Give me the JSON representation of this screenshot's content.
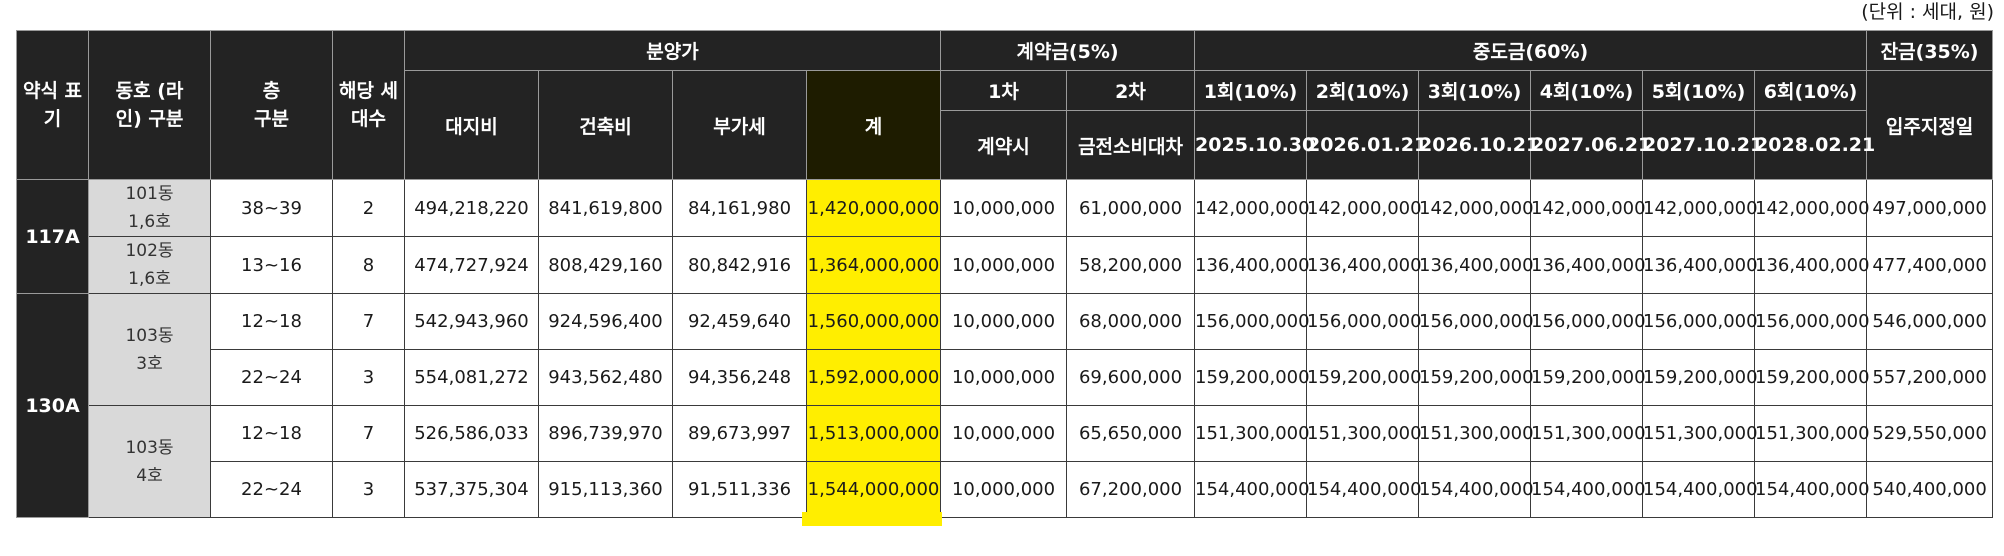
{
  "unit_note": "(단위 : 세대, 원)",
  "header": {
    "abbr": "약식 표기",
    "dong": "동호 (라인) 구분",
    "floor": "층 구분",
    "households": "해당 세대수",
    "sale_price": "분양가",
    "land": "대지비",
    "building": "건축비",
    "vat": "부가세",
    "total": "계",
    "deposit": "계약금(5%)",
    "deposit_1": "1차",
    "deposit_2": "2차",
    "deposit_1_when": "계약시",
    "deposit_2_when": "금전소비대차",
    "middle": "중도금(60%)",
    "middle_rounds": [
      "1회(10%)",
      "2회(10%)",
      "3회(10%)",
      "4회(10%)",
      "5회(10%)",
      "6회(10%)"
    ],
    "middle_dates": [
      "2025.10.30",
      "2026.01.21",
      "2026.10.21",
      "2027.06.21",
      "2027.10.21",
      "2028.02.21"
    ],
    "balance": "잔금(35%)",
    "balance_when": "입주지정일"
  },
  "types": [
    "117A",
    "130A"
  ],
  "dongs": [
    "101동 1,6호",
    "102동 1,6호",
    "103동 3호",
    "103동 4호"
  ],
  "rows": [
    {
      "floor": "38~39",
      "households": "2",
      "land": "494,218,220",
      "building": "841,619,800",
      "vat": "84,161,980",
      "total": "1,420,000,000",
      "dep1": "10,000,000",
      "dep2": "61,000,000",
      "mid": [
        "142,000,000",
        "142,000,000",
        "142,000,000",
        "142,000,000",
        "142,000,000",
        "142,000,000"
      ],
      "balance": "497,000,000"
    },
    {
      "floor": "13~16",
      "households": "8",
      "land": "474,727,924",
      "building": "808,429,160",
      "vat": "80,842,916",
      "total": "1,364,000,000",
      "dep1": "10,000,000",
      "dep2": "58,200,000",
      "mid": [
        "136,400,000",
        "136,400,000",
        "136,400,000",
        "136,400,000",
        "136,400,000",
        "136,400,000"
      ],
      "balance": "477,400,000"
    },
    {
      "floor": "12~18",
      "households": "7",
      "land": "542,943,960",
      "building": "924,596,400",
      "vat": "92,459,640",
      "total": "1,560,000,000",
      "dep1": "10,000,000",
      "dep2": "68,000,000",
      "mid": [
        "156,000,000",
        "156,000,000",
        "156,000,000",
        "156,000,000",
        "156,000,000",
        "156,000,000"
      ],
      "balance": "546,000,000"
    },
    {
      "floor": "22~24",
      "households": "3",
      "land": "554,081,272",
      "building": "943,562,480",
      "vat": "94,356,248",
      "total": "1,592,000,000",
      "dep1": "10,000,000",
      "dep2": "69,600,000",
      "mid": [
        "159,200,000",
        "159,200,000",
        "159,200,000",
        "159,200,000",
        "159,200,000",
        "159,200,000"
      ],
      "balance": "557,200,000"
    },
    {
      "floor": "12~18",
      "households": "7",
      "land": "526,586,033",
      "building": "896,739,970",
      "vat": "89,673,997",
      "total": "1,513,000,000",
      "dep1": "10,000,000",
      "dep2": "65,650,000",
      "mid": [
        "151,300,000",
        "151,300,000",
        "151,300,000",
        "151,300,000",
        "151,300,000",
        "151,300,000"
      ],
      "balance": "529,550,000"
    },
    {
      "floor": "22~24",
      "households": "3",
      "land": "537,375,304",
      "building": "915,113,360",
      "vat": "91,511,336",
      "total": "1,544,000,000",
      "dep1": "10,000,000",
      "dep2": "67,200,000",
      "mid": [
        "154,400,000",
        "154,400,000",
        "154,400,000",
        "154,400,000",
        "154,400,000",
        "154,400,000"
      ],
      "balance": "540,400,000"
    }
  ],
  "colors": {
    "header_bg": "#232323",
    "dong_bg": "#d9d9d9",
    "highlight": "#ffee00"
  }
}
